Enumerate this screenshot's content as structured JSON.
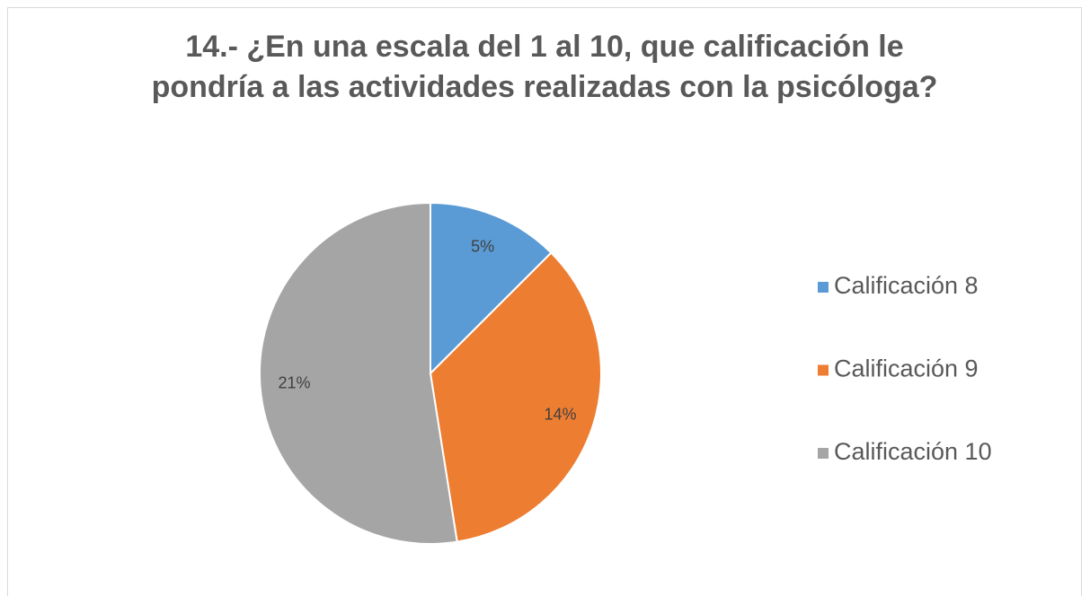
{
  "chart_data": {
    "type": "pie",
    "title": "14.- ¿En una escala del 1 al 10, que calificación le pondría a las actividades realizadas con la psicóloga?",
    "categories": [
      "Calificación 8",
      "Calificación 9",
      "Calificación 10"
    ],
    "values": [
      5,
      14,
      21
    ],
    "value_labels": [
      "5%",
      "14%",
      "21%"
    ],
    "colors": [
      "#5b9bd5",
      "#ed7d31",
      "#a5a5a5"
    ],
    "legend": "right"
  }
}
